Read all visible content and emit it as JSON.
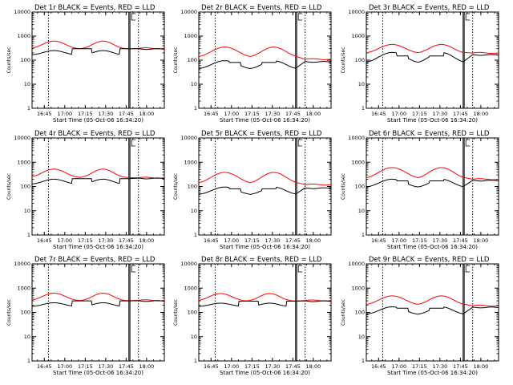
{
  "chart_data": {
    "type": "line",
    "layout": "3x3 grid",
    "yscale": "log",
    "ylim": [
      1,
      10000
    ],
    "xlim": [
      "16:36",
      "18:13"
    ],
    "ylabel": "Counts/sec",
    "xlabel": "Start Time (05-Oct-06 16:34:20)",
    "ytick_labels": [
      "1",
      "10",
      "100",
      "1000",
      "10000"
    ],
    "xtick_labels": [
      "16:45",
      "17:00",
      "17:15",
      "17:30",
      "17:45",
      "18:00"
    ],
    "vlines": [
      "16:48",
      "17:47",
      "17:54"
    ],
    "series_colors": {
      "events": "#000000",
      "lld": "#ff0000"
    },
    "panels": [
      {
        "title": "Det 1r BLACK = Events, RED = LLD",
        "curve": "A",
        "lld_peak": 620,
        "lld_base": 290,
        "events_peak": 250,
        "events_base": 160,
        "gap_events": 300,
        "gap_lld": 320,
        "late_events": 290,
        "late_lld": 310
      },
      {
        "title": "Det 2r BLACK = Events, RED = LLD",
        "curve": "B",
        "lld_peak": 350,
        "lld_base": 130,
        "events_peak": 95,
        "events_base": 42,
        "gap_events": 80,
        "gap_lld": 100,
        "late_events": 85,
        "late_lld": 110
      },
      {
        "title": "Det 3r BLACK = Events, RED = LLD",
        "curve": "B",
        "lld_peak": 450,
        "lld_base": 190,
        "events_peak": 210,
        "events_base": 75,
        "gap_events": 150,
        "gap_lld": 170,
        "late_events": 165,
        "late_lld": 200
      },
      {
        "title": "Det 4r BLACK = Events, RED = LLD",
        "curve": "A",
        "lld_peak": 520,
        "lld_base": 230,
        "events_peak": 200,
        "events_base": 120,
        "gap_events": 210,
        "gap_lld": 220,
        "late_events": 215,
        "late_lld": 230
      },
      {
        "title": "Det 5r BLACK = Events, RED = LLD",
        "curve": "B",
        "lld_peak": 380,
        "lld_base": 130,
        "events_peak": 95,
        "events_base": 45,
        "gap_events": 80,
        "gap_lld": 110,
        "late_events": 85,
        "late_lld": 120
      },
      {
        "title": "Det 6r BLACK = Events, RED = LLD",
        "curve": "B",
        "lld_peak": 600,
        "lld_base": 210,
        "events_peak": 200,
        "events_base": 90,
        "gap_events": 170,
        "gap_lld": 190,
        "late_events": 175,
        "late_lld": 200
      },
      {
        "title": "Det 7r BLACK = Events, RED = LLD",
        "curve": "A",
        "lld_peak": 620,
        "lld_base": 300,
        "events_peak": 250,
        "events_base": 170,
        "gap_events": 300,
        "gap_lld": 320,
        "late_events": 295,
        "late_lld": 315
      },
      {
        "title": "Det 8r BLACK = Events, RED = LLD",
        "curve": "A",
        "lld_peak": 600,
        "lld_base": 290,
        "events_peak": 240,
        "events_base": 170,
        "gap_events": 290,
        "gap_lld": 310,
        "late_events": 290,
        "late_lld": 310
      },
      {
        "title": "Det 9r BLACK = Events, RED = LLD",
        "curve": "B",
        "lld_peak": 480,
        "lld_base": 200,
        "events_peak": 170,
        "events_base": 80,
        "gap_events": 150,
        "gap_lld": 170,
        "late_events": 160,
        "late_lld": 190
      }
    ]
  }
}
